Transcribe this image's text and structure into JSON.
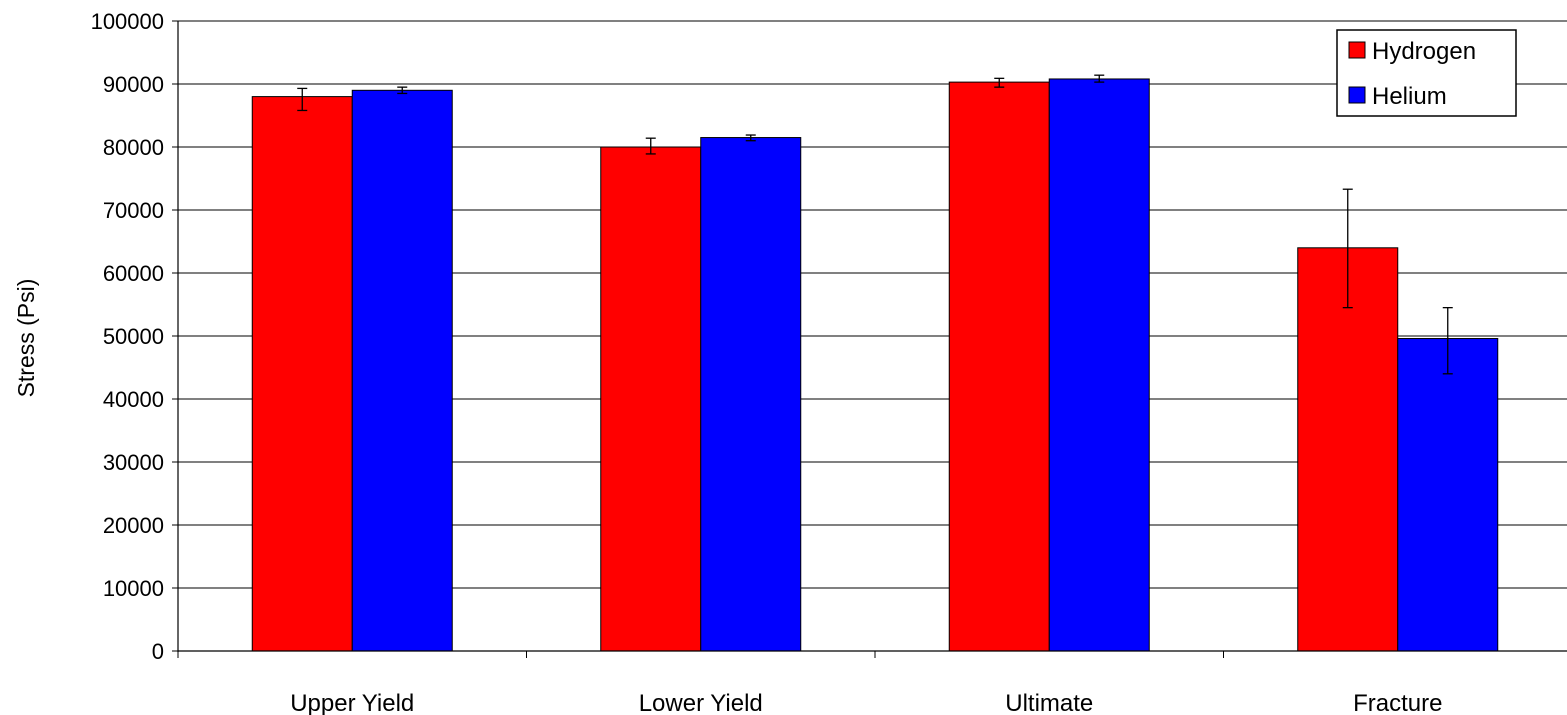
{
  "chart_data": {
    "type": "bar",
    "title": "",
    "xlabel": "",
    "ylabel": "Stress (Psi)",
    "ylim": [
      0,
      100000
    ],
    "ytick_step": 10000,
    "grid": "horizontal",
    "legend_position": "top-right",
    "categories": [
      "Upper Yield",
      "Lower Yield",
      "Ultimate",
      "Fracture"
    ],
    "series": [
      {
        "name": "Hydrogen",
        "color": "#ff0000",
        "values": [
          88000,
          80000,
          90300,
          64000
        ],
        "error_low": [
          85800,
          78900,
          89500,
          54500
        ],
        "error_high": [
          89300,
          81400,
          90900,
          73300
        ]
      },
      {
        "name": "Helium",
        "color": "#0000ff",
        "values": [
          89000,
          81500,
          90800,
          49600
        ],
        "error_low": [
          88500,
          81000,
          90300,
          44000
        ],
        "error_high": [
          89500,
          81900,
          91400,
          54500
        ]
      }
    ]
  }
}
